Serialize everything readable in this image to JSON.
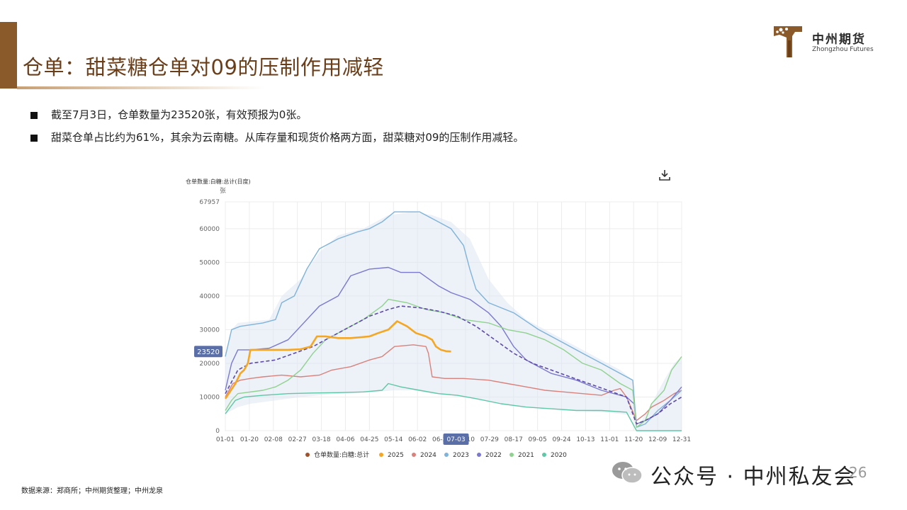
{
  "header": {
    "title": "仓单：甜菜糖仓单对09的压制作用减轻",
    "logo_cn": "中州期货",
    "logo_en": "Zhongzhou Futures",
    "accent_color": "#8b5a2b"
  },
  "bullets": [
    "截至7月3日，仓单数量为23520张，有效预报为0张。",
    "甜菜仓单占比约为61%，其余为云南糖。从库存量和现货价格两方面，甜菜糖对09的压制作用减轻。"
  ],
  "footer": {
    "source": "数据来源：郑商所；中州期货整理；中州龙泉",
    "wechat": "公众号 · 中州私友会",
    "page_number": "26"
  },
  "chart_data": {
    "type": "line",
    "title": "仓单数量:白糖:总计(日度)",
    "ylabel": "张",
    "ylim": [
      0,
      67957
    ],
    "yticks": [
      0,
      10000,
      20000,
      30000,
      40000,
      50000,
      60000,
      67957
    ],
    "xticks": [
      "01-01",
      "01-20",
      "02-08",
      "02-27",
      "03-18",
      "04-06",
      "04-25",
      "05-14",
      "06-02",
      "06-21",
      "07-10",
      "07-29",
      "08-17",
      "09-05",
      "09-24",
      "10-13",
      "11-01",
      "11-20",
      "12-09",
      "12-31"
    ],
    "x_highlight": "07-03",
    "y_highlight": 23520,
    "grid": true,
    "legend_position": "bottom",
    "legend": [
      {
        "name": "仓单数量:白糖:总计",
        "color": "#a0522d"
      },
      {
        "name": "2025",
        "color": "#f5a623"
      },
      {
        "name": "2024",
        "color": "#d9827c"
      },
      {
        "name": "2023",
        "color": "#7fb3d9"
      },
      {
        "name": "2022",
        "color": "#7b78d0"
      },
      {
        "name": "2021",
        "color": "#8fd28f"
      },
      {
        "name": "2020",
        "color": "#5fc7a6"
      }
    ],
    "band": {
      "upper": [
        [
          0,
          22000
        ],
        [
          5,
          30000
        ],
        [
          10,
          32000
        ],
        [
          35,
          33000
        ],
        [
          45,
          40000
        ],
        [
          60,
          45000
        ],
        [
          75,
          53000
        ],
        [
          90,
          58000
        ],
        [
          110,
          60000
        ],
        [
          130,
          64000
        ],
        [
          150,
          65000
        ],
        [
          165,
          64000
        ],
        [
          180,
          62000
        ],
        [
          195,
          57000
        ],
        [
          210,
          45000
        ],
        [
          225,
          38000
        ],
        [
          240,
          33000
        ],
        [
          255,
          30000
        ],
        [
          270,
          27000
        ],
        [
          285,
          24000
        ],
        [
          300,
          21000
        ],
        [
          315,
          18000
        ],
        [
          325,
          15000
        ],
        [
          328,
          1000
        ],
        [
          332,
          3000
        ],
        [
          340,
          8000
        ],
        [
          350,
          15000
        ],
        [
          358,
          20000
        ],
        [
          364,
          22000
        ]
      ],
      "lower": [
        [
          0,
          5000
        ],
        [
          10,
          7000
        ],
        [
          20,
          8000
        ],
        [
          40,
          9000
        ],
        [
          60,
          10000
        ],
        [
          90,
          11000
        ],
        [
          120,
          11500
        ],
        [
          135,
          12000
        ],
        [
          150,
          12000
        ],
        [
          165,
          11000
        ],
        [
          180,
          10500
        ],
        [
          200,
          9500
        ],
        [
          220,
          8000
        ],
        [
          240,
          7000
        ],
        [
          260,
          6500
        ],
        [
          280,
          6000
        ],
        [
          300,
          5500
        ],
        [
          315,
          5000
        ],
        [
          325,
          4500
        ],
        [
          328,
          0
        ],
        [
          340,
          0
        ],
        [
          355,
          0
        ],
        [
          364,
          0
        ]
      ]
    },
    "series": [
      {
        "name": "2025",
        "color": "#f5a623",
        "width": 2.6,
        "values": [
          [
            0,
            9500
          ],
          [
            8,
            14000
          ],
          [
            12,
            17000
          ],
          [
            15,
            18000
          ],
          [
            18,
            20000
          ],
          [
            20,
            24000
          ],
          [
            30,
            24000
          ],
          [
            40,
            24000
          ],
          [
            50,
            24000
          ],
          [
            60,
            24200
          ],
          [
            68,
            25000
          ],
          [
            73,
            28000
          ],
          [
            80,
            28000
          ],
          [
            90,
            27500
          ],
          [
            100,
            27500
          ],
          [
            115,
            28000
          ],
          [
            122,
            29000
          ],
          [
            130,
            30000
          ],
          [
            137,
            32500
          ],
          [
            145,
            31000
          ],
          [
            152,
            29000
          ],
          [
            160,
            28000
          ],
          [
            165,
            27000
          ],
          [
            168,
            25000
          ],
          [
            172,
            24000
          ],
          [
            176,
            23600
          ],
          [
            180,
            23520
          ]
        ]
      },
      {
        "name": "2024",
        "color": "#d9827c",
        "width": 1.4,
        "values": [
          [
            0,
            10000
          ],
          [
            6,
            14000
          ],
          [
            12,
            15000
          ],
          [
            20,
            15500
          ],
          [
            30,
            16000
          ],
          [
            45,
            16500
          ],
          [
            60,
            16000
          ],
          [
            75,
            16500
          ],
          [
            85,
            18000
          ],
          [
            100,
            19000
          ],
          [
            115,
            21000
          ],
          [
            125,
            22000
          ],
          [
            135,
            25000
          ],
          [
            150,
            25500
          ],
          [
            160,
            25000
          ],
          [
            162,
            23000
          ],
          [
            165,
            16000
          ],
          [
            175,
            15500
          ],
          [
            190,
            15500
          ],
          [
            210,
            15000
          ],
          [
            225,
            14000
          ],
          [
            240,
            13000
          ],
          [
            255,
            12000
          ],
          [
            270,
            11500
          ],
          [
            285,
            11000
          ],
          [
            300,
            10500
          ],
          [
            310,
            12000
          ],
          [
            315,
            12500
          ],
          [
            320,
            10000
          ],
          [
            328,
            3000
          ],
          [
            335,
            5000
          ],
          [
            340,
            7000
          ],
          [
            350,
            9000
          ],
          [
            358,
            11000
          ],
          [
            364,
            12000
          ]
        ]
      },
      {
        "name": "2023",
        "color": "#7fb3d9",
        "width": 1.4,
        "values": [
          [
            0,
            22000
          ],
          [
            5,
            30000
          ],
          [
            12,
            31000
          ],
          [
            30,
            32000
          ],
          [
            40,
            33000
          ],
          [
            45,
            38000
          ],
          [
            55,
            40000
          ],
          [
            65,
            48000
          ],
          [
            75,
            54000
          ],
          [
            90,
            57000
          ],
          [
            105,
            59000
          ],
          [
            115,
            60000
          ],
          [
            125,
            62000
          ],
          [
            135,
            65000
          ],
          [
            155,
            65000
          ],
          [
            170,
            62000
          ],
          [
            180,
            60000
          ],
          [
            190,
            55000
          ],
          [
            195,
            48000
          ],
          [
            200,
            42000
          ],
          [
            210,
            38000
          ],
          [
            230,
            35000
          ],
          [
            250,
            30000
          ],
          [
            270,
            26000
          ],
          [
            285,
            23000
          ],
          [
            300,
            20000
          ],
          [
            315,
            17000
          ],
          [
            325,
            15000
          ],
          [
            328,
            1000
          ],
          [
            335,
            2000
          ],
          [
            345,
            6000
          ],
          [
            355,
            9000
          ],
          [
            364,
            12000
          ]
        ]
      },
      {
        "name": "2022",
        "color": "#7b78d0",
        "width": 1.4,
        "values": [
          [
            0,
            12000
          ],
          [
            5,
            20000
          ],
          [
            10,
            24000
          ],
          [
            20,
            24000
          ],
          [
            35,
            24500
          ],
          [
            50,
            27000
          ],
          [
            60,
            31000
          ],
          [
            75,
            37000
          ],
          [
            90,
            40000
          ],
          [
            100,
            46000
          ],
          [
            115,
            48000
          ],
          [
            130,
            48500
          ],
          [
            140,
            47000
          ],
          [
            155,
            47000
          ],
          [
            170,
            43000
          ],
          [
            180,
            41000
          ],
          [
            195,
            39000
          ],
          [
            210,
            35000
          ],
          [
            220,
            31000
          ],
          [
            230,
            25000
          ],
          [
            240,
            21000
          ],
          [
            260,
            17000
          ],
          [
            280,
            15000
          ],
          [
            300,
            12000
          ],
          [
            320,
            10000
          ],
          [
            326,
            8000
          ],
          [
            328,
            2000
          ],
          [
            335,
            3000
          ],
          [
            345,
            5000
          ],
          [
            355,
            9000
          ],
          [
            364,
            13000
          ]
        ]
      },
      {
        "name": "2021",
        "color": "#8fd28f",
        "width": 1.4,
        "values": [
          [
            0,
            6000
          ],
          [
            5,
            9000
          ],
          [
            10,
            11000
          ],
          [
            30,
            12000
          ],
          [
            40,
            13000
          ],
          [
            50,
            15000
          ],
          [
            60,
            18000
          ],
          [
            70,
            23000
          ],
          [
            80,
            27000
          ],
          [
            95,
            30000
          ],
          [
            110,
            33000
          ],
          [
            125,
            37000
          ],
          [
            130,
            39000
          ],
          [
            145,
            38000
          ],
          [
            160,
            36000
          ],
          [
            175,
            35000
          ],
          [
            190,
            33000
          ],
          [
            210,
            32000
          ],
          [
            225,
            30000
          ],
          [
            240,
            29000
          ],
          [
            255,
            27000
          ],
          [
            270,
            24000
          ],
          [
            285,
            20000
          ],
          [
            300,
            18000
          ],
          [
            315,
            14000
          ],
          [
            325,
            12000
          ],
          [
            328,
            1000
          ],
          [
            335,
            3000
          ],
          [
            340,
            8000
          ],
          [
            345,
            10000
          ],
          [
            350,
            12000
          ],
          [
            356,
            18000
          ],
          [
            362,
            21000
          ],
          [
            364,
            22000
          ]
        ]
      },
      {
        "name": "2020",
        "color": "#5fc7a6",
        "width": 1.4,
        "values": [
          [
            0,
            5000
          ],
          [
            8,
            9000
          ],
          [
            15,
            10000
          ],
          [
            30,
            10500
          ],
          [
            50,
            11000
          ],
          [
            70,
            11200
          ],
          [
            90,
            11300
          ],
          [
            110,
            11500
          ],
          [
            125,
            12000
          ],
          [
            130,
            14000
          ],
          [
            140,
            13000
          ],
          [
            155,
            12000
          ],
          [
            170,
            11000
          ],
          [
            185,
            10500
          ],
          [
            200,
            9500
          ],
          [
            220,
            8000
          ],
          [
            240,
            7000
          ],
          [
            260,
            6500
          ],
          [
            280,
            6000
          ],
          [
            300,
            6000
          ],
          [
            320,
            5500
          ],
          [
            328,
            0
          ],
          [
            345,
            0
          ],
          [
            360,
            0
          ],
          [
            364,
            0
          ]
        ]
      },
      {
        "name": "仓单数量:白糖:总计",
        "color": "#5d4aa8",
        "width": 1.6,
        "dashed": true,
        "values": [
          [
            0,
            11000
          ],
          [
            10,
            18000
          ],
          [
            20,
            20000
          ],
          [
            40,
            21000
          ],
          [
            55,
            23000
          ],
          [
            70,
            25000
          ],
          [
            85,
            28000
          ],
          [
            100,
            31000
          ],
          [
            115,
            34000
          ],
          [
            130,
            36000
          ],
          [
            140,
            37000
          ],
          [
            155,
            36500
          ],
          [
            170,
            35500
          ],
          [
            185,
            34000
          ],
          [
            200,
            31000
          ],
          [
            215,
            27000
          ],
          [
            230,
            23000
          ],
          [
            245,
            20000
          ],
          [
            260,
            18000
          ],
          [
            275,
            16000
          ],
          [
            290,
            14000
          ],
          [
            305,
            12000
          ],
          [
            320,
            10000
          ],
          [
            328,
            2000
          ],
          [
            335,
            3000
          ],
          [
            345,
            5000
          ],
          [
            355,
            8000
          ],
          [
            364,
            10000
          ]
        ]
      }
    ]
  }
}
